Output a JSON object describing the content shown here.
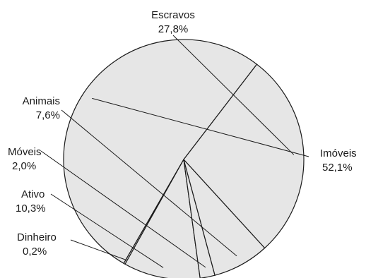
{
  "chart_data": {
    "type": "pie",
    "title": "",
    "fill_color": "#e6e6e6",
    "stroke_color": "#1a1a1a",
    "slices": [
      {
        "name": "Imóveis",
        "value": 52.1,
        "label": "Imóveis",
        "pct_label": "52,1%"
      },
      {
        "name": "Dinheiro",
        "value": 0.2,
        "label": "Dinheiro",
        "pct_label": "0,2%"
      },
      {
        "name": "Ativo",
        "value": 10.3,
        "label": "Ativo",
        "pct_label": "10,3%"
      },
      {
        "name": "Móveis",
        "value": 2.0,
        "label": "Móveis",
        "pct_label": "2,0%"
      },
      {
        "name": "Animais",
        "value": 7.6,
        "label": "Animais",
        "pct_label": "7,6%"
      },
      {
        "name": "Escravos",
        "value": 27.8,
        "label": "Escravos",
        "pct_label": "27,8%"
      }
    ]
  }
}
